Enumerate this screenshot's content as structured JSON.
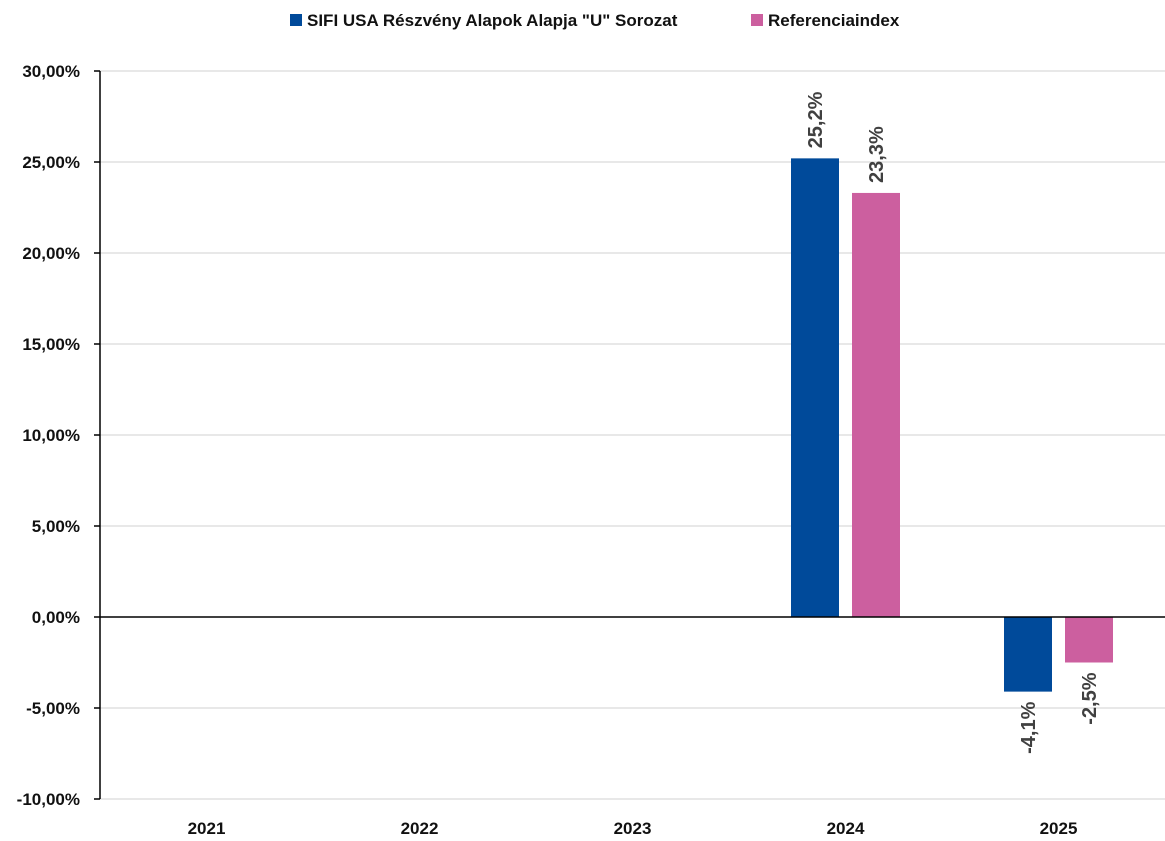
{
  "chart_data": {
    "type": "bar",
    "title": "",
    "xlabel": "",
    "ylabel": "",
    "categories": [
      "2021",
      "2022",
      "2023",
      "2024",
      "2025"
    ],
    "series": [
      {
        "name": "SIFI USA Részvény Alapok Alapja \"U\" Sorozat",
        "color": "#004A9A",
        "values": [
          null,
          null,
          null,
          25.2,
          -4.1
        ],
        "labels": [
          "",
          "",
          "",
          "25,2%",
          "-4,1%"
        ]
      },
      {
        "name": "Referenciaindex",
        "color": "#CC5F9F",
        "values": [
          null,
          null,
          null,
          23.3,
          -2.5
        ],
        "labels": [
          "",
          "",
          "",
          "23,3%",
          "-2,5%"
        ]
      }
    ],
    "ylim": [
      -10,
      30
    ],
    "yticks": [
      30,
      25,
      20,
      15,
      10,
      5,
      0,
      -5,
      -10
    ],
    "ytick_labels": [
      "30,00%",
      "25,00%",
      "20,00%",
      "15,00%",
      "10,00%",
      "5,00%",
      "0,00%",
      "-5,00%",
      "-10,00%"
    ],
    "grid": true,
    "legend_position": "top-center"
  }
}
